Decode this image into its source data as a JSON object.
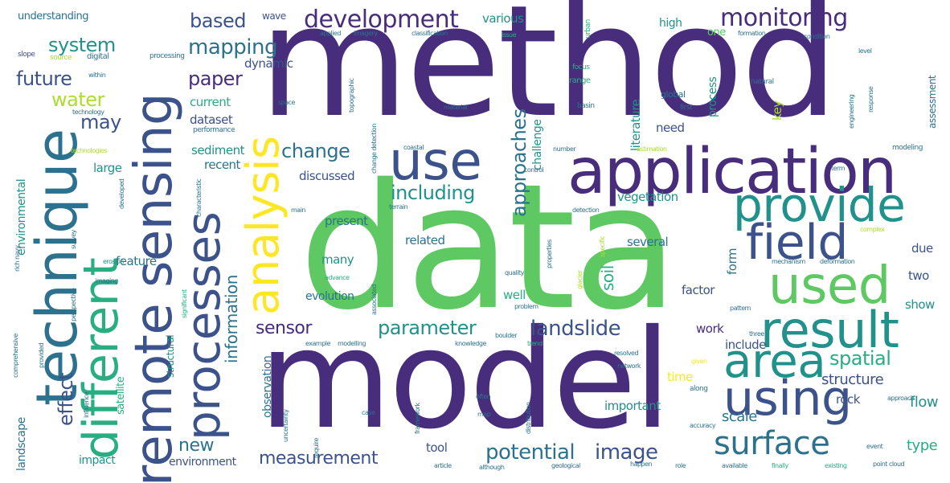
{
  "words": {
    "method": "method",
    "data": "data",
    "model": "model",
    "application": "application",
    "remote_sensing": "remote sensing",
    "technique": "technique",
    "processes": "processes",
    "different": "different",
    "analysis": "analysis",
    "use": "use",
    "provide": "provide",
    "field": "field",
    "used": "used",
    "result": "result",
    "area": "area",
    "using": "using",
    "surface": "surface",
    "development": "development",
    "monitoring": "monitoring",
    "mapping": "mapping",
    "based": "based",
    "system": "system",
    "future": "future",
    "paper": "paper",
    "water": "water",
    "may": "may",
    "change": "change",
    "including": "including",
    "approaches": "approaches",
    "landslide": "landslide",
    "parameter": "parameter",
    "sensor": "sensor",
    "potential": "potential",
    "image": "image",
    "measurement": "measurement",
    "spatial": "spatial",
    "information": "information",
    "effect": "effect",
    "new": "new",
    "soil": "soil",
    "structure": "structure",
    "scale": "scale",
    "flow": "flow",
    "dataset": "dataset",
    "current": "current",
    "dynamic": "dynamic",
    "sediment": "sediment",
    "recent": "recent",
    "large": "large",
    "discussed": "discussed",
    "present": "present",
    "feature": "feature",
    "evolution": "evolution",
    "observation": "observation",
    "many": "many",
    "well": "well",
    "related": "related",
    "several": "several",
    "factor": "factor",
    "include": "include",
    "important": "important",
    "work": "work",
    "show": "show",
    "vegetation": "vegetation",
    "tool": "tool",
    "environment": "environment",
    "impact": "impact",
    "landscape": "landscape",
    "environmental": "environmental",
    "rock": "rock",
    "type": "type",
    "two": "two",
    "due": "due",
    "need": "need",
    "literature": "literature",
    "challenge": "challenge",
    "process": "process",
    "high": "high",
    "one": "one",
    "various": "various",
    "wave": "wave",
    "understanding": "understanding",
    "form": "form",
    "time": "time",
    "key": "key",
    "assessment": "assessment",
    "satellite": "satellite",
    "structural": "structural",
    "slope": "slope",
    "source": "source",
    "digital": "digital",
    "processing": "processing",
    "technology": "technology",
    "technologies": "technologies",
    "performance": "performance",
    "global": "global",
    "first": "first",
    "basin": "basin",
    "natural": "natural",
    "focus": "focus",
    "range": "range",
    "urban": "urban",
    "issue": "issue",
    "classification": "classification",
    "applied": "applied",
    "imagery": "imagery",
    "formation": "formation",
    "condition": "condition",
    "level": "level",
    "engineering": "engineering",
    "response": "response",
    "modeling": "modeling",
    "complex": "complex",
    "mechanism": "mechanism",
    "deformation": "deformation",
    "pattern": "pattern",
    "resolved": "resolved",
    "network": "network",
    "along": "along",
    "approach": "approach",
    "accuracy": "accuracy",
    "event": "event",
    "point_cloud": "point cloud",
    "role": "role",
    "available": "available",
    "finally": "finally",
    "existing": "existing",
    "geological": "geological",
    "although": "although",
    "article": "article",
    "example": "example",
    "modelling": "modelling",
    "knowledge": "knowledge",
    "boulder": "boulder",
    "trend": "trend",
    "problem": "problem",
    "advance": "advance",
    "quality": "quality",
    "specific": "specific",
    "properties": "properties",
    "detection": "detection",
    "terrain": "terrain",
    "main": "main",
    "control": "control",
    "number": "number",
    "coastal": "coastal",
    "material": "material",
    "space": "space",
    "topographic": "topographic",
    "estimation": "estimation",
    "three": "three",
    "given": "given",
    "case": "case",
    "often": "often",
    "distribution": "distribution",
    "uncertainty": "uncertainty",
    "framework": "framework",
    "happen": "happen",
    "require": "require",
    "survey": "survey",
    "imaging": "imaging",
    "erosion": "erosion",
    "developed": "developed",
    "comprehensive": "comprehensive",
    "perspective": "perspective",
    "provided": "provided",
    "influence": "influence",
    "significant": "significant",
    "characteristic": "characteristic",
    "rich_navy": "rich navy",
    "change_detection": "change detection",
    "within": "within",
    "map": "map",
    "term": "term",
    "associated": "associated",
    "studies": "studies",
    "instrument": "instrument",
    "glacier": "glacier",
    "critical": "critical",
    "often2": "along"
  }
}
